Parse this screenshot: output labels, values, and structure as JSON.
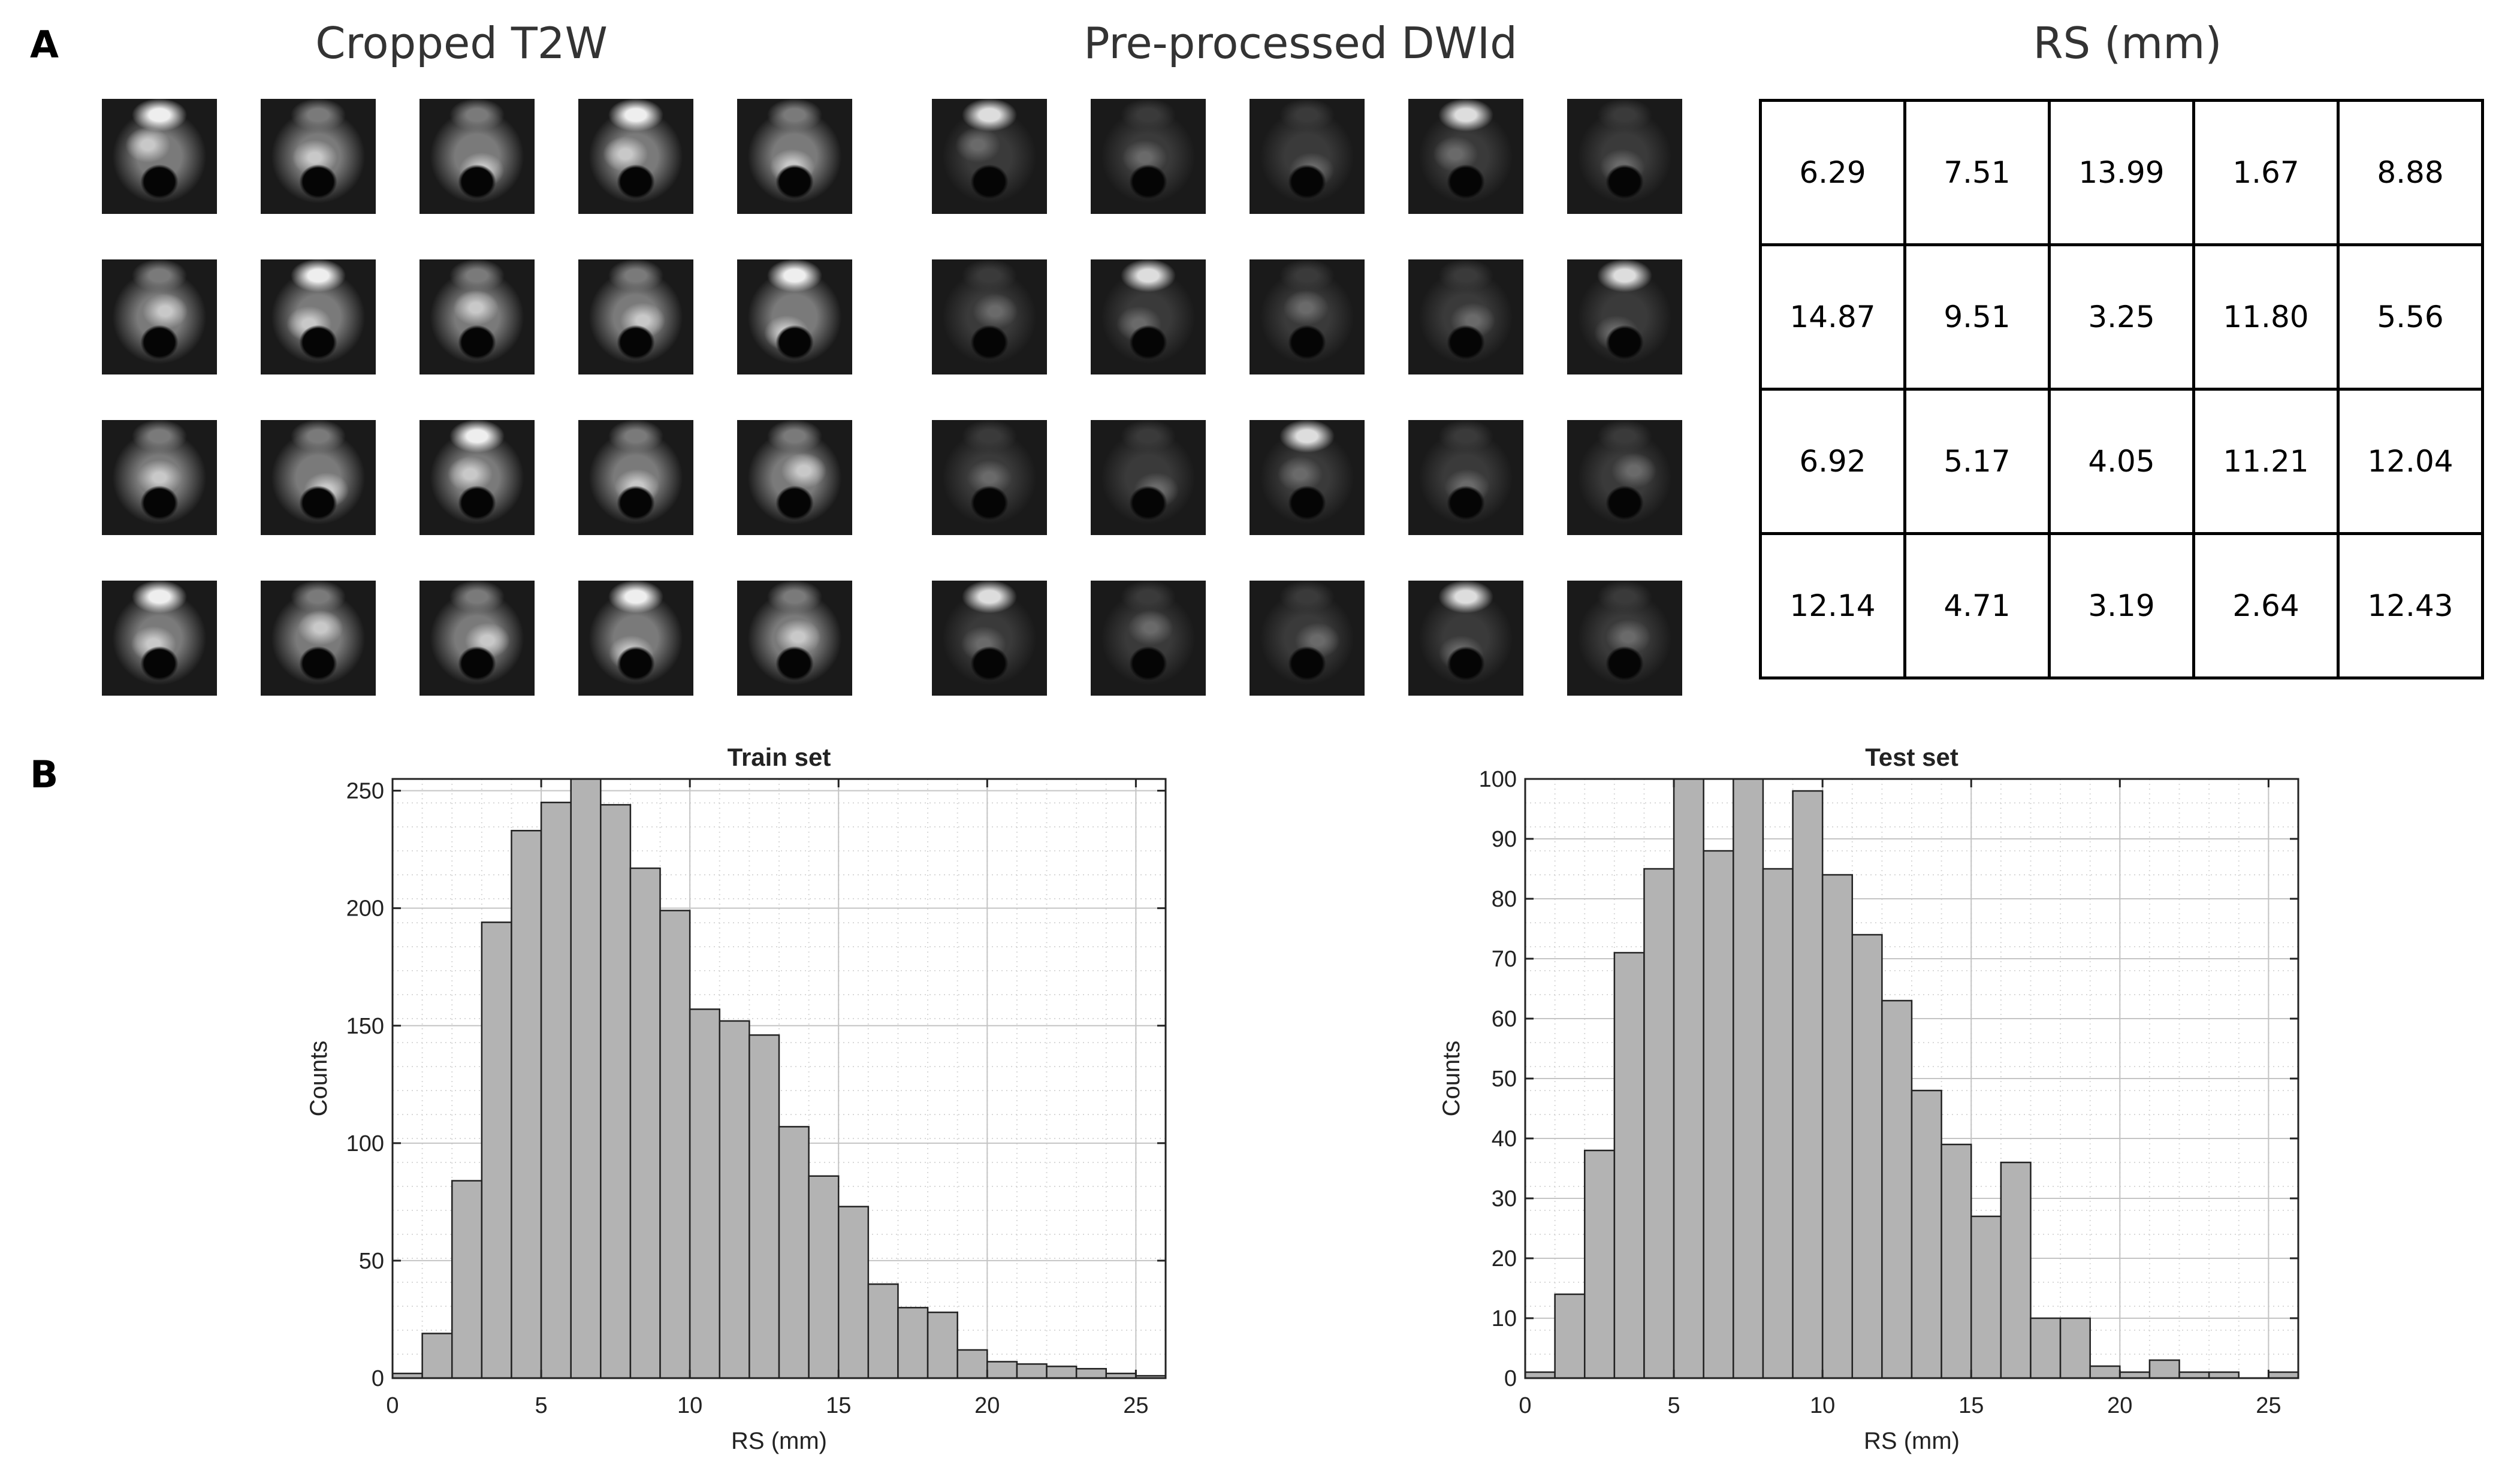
{
  "panel_a": {
    "letter": "A",
    "t2w_title": "Cropped T2W",
    "dwi_title": "Pre-processed DWId",
    "rs_title": "RS (mm)",
    "rs_table": [
      [
        "6.29",
        "7.51",
        "13.99",
        "1.67",
        "8.88"
      ],
      [
        "14.87",
        "9.51",
        "3.25",
        "11.80",
        "5.56"
      ],
      [
        "6.92",
        "5.17",
        "4.05",
        "11.21",
        "12.04"
      ],
      [
        "12.14",
        "4.71",
        "3.19",
        "2.64",
        "12.43"
      ]
    ]
  },
  "panel_b": {
    "letter": "B"
  },
  "chart_data": [
    {
      "type": "bar",
      "title": "Train set",
      "xlabel": "RS (mm)",
      "ylabel": "Counts",
      "xlim": [
        0,
        26
      ],
      "ylim": [
        0,
        255
      ],
      "xticks": [
        0,
        5,
        10,
        15,
        20,
        25
      ],
      "yticks": [
        0,
        50,
        100,
        150,
        200,
        250
      ],
      "grid": true,
      "bin_width": 1,
      "bin_starts": [
        0,
        1,
        2,
        3,
        4,
        5,
        6,
        7,
        8,
        9,
        10,
        11,
        12,
        13,
        14,
        15,
        16,
        17,
        18,
        19,
        20,
        21,
        22,
        23,
        24,
        25
      ],
      "values": [
        2,
        19,
        84,
        194,
        233,
        245,
        255,
        244,
        217,
        199,
        157,
        152,
        146,
        107,
        86,
        73,
        40,
        30,
        28,
        12,
        7,
        6,
        5,
        4,
        2,
        1
      ]
    },
    {
      "type": "bar",
      "title": "Test set",
      "xlabel": "RS (mm)",
      "ylabel": "Counts",
      "xlim": [
        0,
        26
      ],
      "ylim": [
        0,
        100
      ],
      "xticks": [
        0,
        5,
        10,
        15,
        20,
        25
      ],
      "yticks": [
        0,
        10,
        20,
        30,
        40,
        50,
        60,
        70,
        80,
        90,
        100
      ],
      "grid": true,
      "bin_width": 1,
      "bin_starts": [
        0,
        1,
        2,
        3,
        4,
        5,
        6,
        7,
        8,
        9,
        10,
        11,
        12,
        13,
        14,
        15,
        16,
        17,
        18,
        19,
        20,
        21,
        22,
        23,
        24,
        25
      ],
      "values": [
        1,
        14,
        38,
        71,
        85,
        100,
        88,
        100,
        85,
        98,
        84,
        74,
        63,
        48,
        39,
        27,
        36,
        10,
        10,
        2,
        1,
        3,
        1,
        1,
        0,
        1
      ]
    }
  ]
}
